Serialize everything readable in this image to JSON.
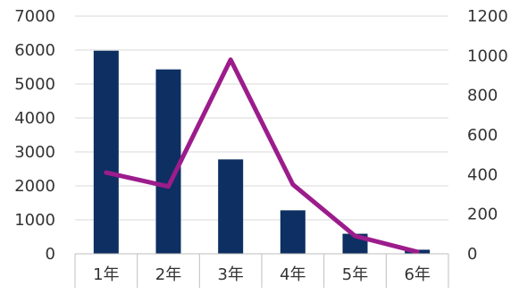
{
  "chart_data": {
    "type": "bar",
    "categories": [
      "1年",
      "2年",
      "3年",
      "4年",
      "5年",
      "6年"
    ],
    "series": [
      {
        "type": "bar",
        "axis": "left",
        "values": [
          5980,
          5430,
          2780,
          1280,
          590,
          120
        ],
        "color": "#0d2f62"
      },
      {
        "type": "line",
        "axis": "right",
        "values": [
          410,
          340,
          980,
          350,
          90,
          10
        ],
        "color": "#9c1c8c"
      }
    ],
    "y_left": {
      "range": [
        0,
        7000
      ],
      "ticks": [
        "0",
        "1000",
        "2000",
        "3000",
        "4000",
        "5000",
        "6000",
        "7000"
      ]
    },
    "y_right": {
      "range": [
        0,
        1200
      ],
      "ticks": [
        "0",
        "200",
        "400",
        "600",
        "800",
        "1000",
        "1200"
      ]
    },
    "grid": true,
    "legend": "none",
    "title": "",
    "xlabel": "",
    "ylabel": ""
  }
}
